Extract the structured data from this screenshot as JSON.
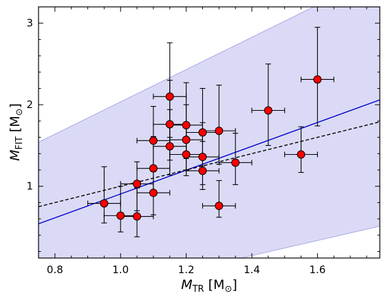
{
  "chart_data": {
    "type": "scatter",
    "xlabel": {
      "symbol": "M",
      "sub": "TR",
      "unit": "[M",
      "unit_sub": "⊙",
      "unit_end": "]"
    },
    "ylabel": {
      "symbol": "M",
      "sub": "FIT",
      "unit": "[M",
      "unit_sub": "⊙",
      "unit_end": "]"
    },
    "xlim": [
      0.75,
      1.79
    ],
    "ylim": [
      0.12,
      3.2
    ],
    "xticks": [
      0.8,
      1.0,
      1.2,
      1.4,
      1.6
    ],
    "xtick_labels": [
      "0.8",
      "1.0",
      "1.2",
      "1.4",
      "1.6"
    ],
    "yticks": [
      1,
      2,
      3
    ],
    "ytick_labels": [
      "1",
      "2",
      "3"
    ],
    "grid": false,
    "colors": {
      "points": "#ff0000",
      "point_edge": "#000000",
      "fit_line": "#0000cc",
      "reference_line": "#000000",
      "band": "#d8d8f6",
      "band_edge": "#a8a8e6",
      "errorbars": "#000000"
    },
    "points": [
      {
        "x": 0.95,
        "y": 0.79,
        "xerr": 0.05,
        "yerr_low": 0.24,
        "yerr_high": 0.45
      },
      {
        "x": 1.0,
        "y": 0.64,
        "xerr": 0.05,
        "yerr_low": 0.2,
        "yerr_high": 0.36
      },
      {
        "x": 1.05,
        "y": 0.63,
        "xerr": 0.05,
        "yerr_low": 0.25,
        "yerr_high": 0.35
      },
      {
        "x": 1.05,
        "y": 1.03,
        "xerr": 0.05,
        "yerr_low": 0.33,
        "yerr_high": 0.27
      },
      {
        "x": 1.1,
        "y": 0.92,
        "xerr": 0.05,
        "yerr_low": 0.27,
        "yerr_high": 0.28
      },
      {
        "x": 1.1,
        "y": 1.22,
        "xerr": 0.05,
        "yerr_low": 0.3,
        "yerr_high": 0.39
      },
      {
        "x": 1.1,
        "y": 1.56,
        "xerr": 0.05,
        "yerr_low": 0.38,
        "yerr_high": 0.42
      },
      {
        "x": 1.15,
        "y": 2.1,
        "xerr": 0.05,
        "yerr_low": 0.5,
        "yerr_high": 0.66
      },
      {
        "x": 1.15,
        "y": 1.76,
        "xerr": 0.05,
        "yerr_low": 0.44,
        "yerr_high": 0.54
      },
      {
        "x": 1.15,
        "y": 1.49,
        "xerr": 0.05,
        "yerr_low": 0.35,
        "yerr_high": 0.45
      },
      {
        "x": 1.2,
        "y": 1.75,
        "xerr": 0.05,
        "yerr_low": 0.41,
        "yerr_high": 0.52
      },
      {
        "x": 1.2,
        "y": 1.57,
        "xerr": 0.05,
        "yerr_low": 0.37,
        "yerr_high": 0.43
      },
      {
        "x": 1.2,
        "y": 1.39,
        "xerr": 0.05,
        "yerr_low": 0.26,
        "yerr_high": 0.35
      },
      {
        "x": 1.25,
        "y": 1.66,
        "xerr": 0.05,
        "yerr_low": 0.41,
        "yerr_high": 0.54
      },
      {
        "x": 1.25,
        "y": 1.36,
        "xerr": 0.05,
        "yerr_low": 0.34,
        "yerr_high": 0.42
      },
      {
        "x": 1.25,
        "y": 1.19,
        "xerr": 0.05,
        "yerr_low": 0.23,
        "yerr_high": 0.36
      },
      {
        "x": 1.3,
        "y": 1.68,
        "xerr": 0.05,
        "yerr_low": 0.41,
        "yerr_high": 0.56
      },
      {
        "x": 1.3,
        "y": 0.76,
        "xerr": 0.05,
        "yerr_low": 0.14,
        "yerr_high": 0.31
      },
      {
        "x": 1.35,
        "y": 1.29,
        "xerr": 0.05,
        "yerr_low": 0.27,
        "yerr_high": 0.36
      },
      {
        "x": 1.45,
        "y": 1.93,
        "xerr": 0.05,
        "yerr_low": 0.43,
        "yerr_high": 0.57
      },
      {
        "x": 1.55,
        "y": 1.39,
        "xerr": 0.05,
        "yerr_low": 0.22,
        "yerr_high": 0.34
      },
      {
        "x": 1.6,
        "y": 2.31,
        "xerr": 0.05,
        "yerr_low": 0.57,
        "yerr_high": 0.64
      }
    ],
    "fit_line": {
      "x": [
        0.75,
        1.79
      ],
      "y": [
        0.54,
        2.06
      ]
    },
    "reference_line": {
      "x": [
        0.75,
        1.79
      ],
      "y": [
        0.75,
        1.79
      ]
    },
    "band": {
      "upper": {
        "x": [
          0.75,
          1.79
        ],
        "y": [
          1.54,
          3.6
        ]
      },
      "lower": {
        "x": [
          0.75,
          1.79
        ],
        "y": [
          -0.45,
          0.51
        ]
      }
    }
  }
}
